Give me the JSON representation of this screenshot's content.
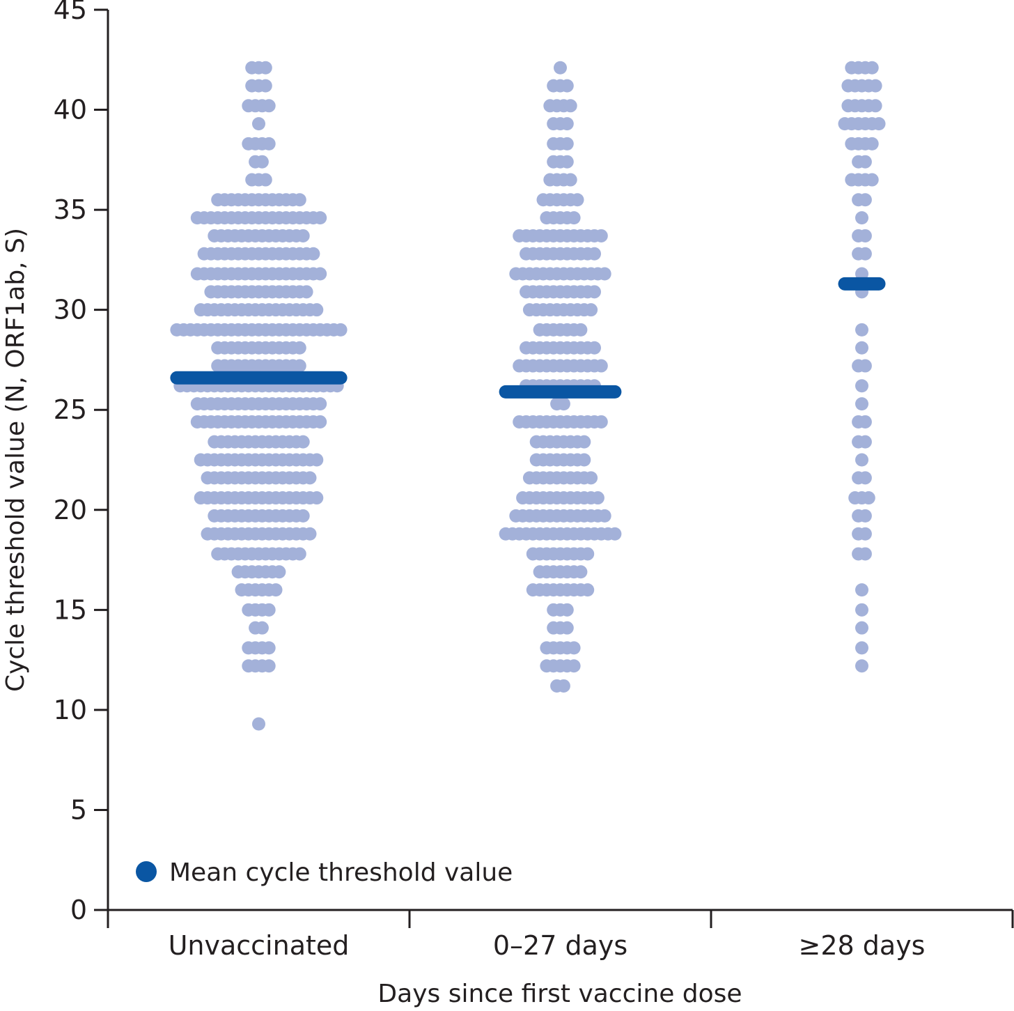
{
  "chart_data": {
    "type": "scatter",
    "subtype": "beeswarm",
    "title": "",
    "xlabel": "Days since first vaccine dose",
    "ylabel": "Cycle threshold value (N, ORF1ab, S)",
    "ylim": [
      0,
      45
    ],
    "yticks": [
      "0",
      "5",
      "10",
      "15",
      "20",
      "25",
      "30",
      "35",
      "40",
      "45"
    ],
    "categories": [
      "Unvaccinated",
      "0–27 days",
      "≥28 days"
    ],
    "grid": false,
    "legend": {
      "label": "Mean cycle threshold value",
      "position": "bottom-left"
    },
    "colors": {
      "points": "#a3b1d9",
      "mean": "#0a56a3",
      "axis": "#231f20"
    },
    "groups": [
      {
        "name": "Unvaccinated",
        "mean": 26.6,
        "bins": [
          {
            "y": 42.1,
            "n": 3
          },
          {
            "y": 41.2,
            "n": 3
          },
          {
            "y": 40.2,
            "n": 4
          },
          {
            "y": 39.3,
            "n": 1
          },
          {
            "y": 38.3,
            "n": 4
          },
          {
            "y": 37.4,
            "n": 2
          },
          {
            "y": 36.5,
            "n": 3
          },
          {
            "y": 35.5,
            "n": 13
          },
          {
            "y": 34.6,
            "n": 19
          },
          {
            "y": 33.7,
            "n": 14
          },
          {
            "y": 32.8,
            "n": 17
          },
          {
            "y": 31.8,
            "n": 19
          },
          {
            "y": 30.9,
            "n": 15
          },
          {
            "y": 30.0,
            "n": 18
          },
          {
            "y": 29.0,
            "n": 25
          },
          {
            "y": 28.1,
            "n": 13
          },
          {
            "y": 27.2,
            "n": 13
          },
          {
            "y": 26.2,
            "n": 24
          },
          {
            "y": 25.3,
            "n": 19
          },
          {
            "y": 24.4,
            "n": 19
          },
          {
            "y": 23.4,
            "n": 14
          },
          {
            "y": 22.5,
            "n": 18
          },
          {
            "y": 21.6,
            "n": 16
          },
          {
            "y": 20.6,
            "n": 18
          },
          {
            "y": 19.7,
            "n": 14
          },
          {
            "y": 18.8,
            "n": 16
          },
          {
            "y": 17.8,
            "n": 13
          },
          {
            "y": 16.9,
            "n": 7
          },
          {
            "y": 16.0,
            "n": 6
          },
          {
            "y": 15.0,
            "n": 4
          },
          {
            "y": 14.1,
            "n": 2
          },
          {
            "y": 13.1,
            "n": 4
          },
          {
            "y": 12.2,
            "n": 4
          },
          {
            "y": 9.3,
            "n": 1
          }
        ]
      },
      {
        "name": "0–27 days",
        "mean": 25.9,
        "bins": [
          {
            "y": 42.1,
            "n": 1
          },
          {
            "y": 41.2,
            "n": 3
          },
          {
            "y": 40.2,
            "n": 4
          },
          {
            "y": 39.3,
            "n": 3
          },
          {
            "y": 38.3,
            "n": 3
          },
          {
            "y": 37.4,
            "n": 3
          },
          {
            "y": 36.5,
            "n": 4
          },
          {
            "y": 35.5,
            "n": 6
          },
          {
            "y": 34.6,
            "n": 5
          },
          {
            "y": 33.7,
            "n": 13
          },
          {
            "y": 32.8,
            "n": 11
          },
          {
            "y": 31.8,
            "n": 14
          },
          {
            "y": 30.9,
            "n": 11
          },
          {
            "y": 30.0,
            "n": 10
          },
          {
            "y": 29.0,
            "n": 7
          },
          {
            "y": 28.1,
            "n": 11
          },
          {
            "y": 27.2,
            "n": 13
          },
          {
            "y": 26.2,
            "n": 11
          },
          {
            "y": 25.3,
            "n": 2
          },
          {
            "y": 24.4,
            "n": 13
          },
          {
            "y": 23.4,
            "n": 8
          },
          {
            "y": 22.5,
            "n": 8
          },
          {
            "y": 21.6,
            "n": 10
          },
          {
            "y": 20.6,
            "n": 12
          },
          {
            "y": 19.7,
            "n": 14
          },
          {
            "y": 18.8,
            "n": 17
          },
          {
            "y": 17.8,
            "n": 9
          },
          {
            "y": 16.9,
            "n": 7
          },
          {
            "y": 16.0,
            "n": 9
          },
          {
            "y": 15.0,
            "n": 3
          },
          {
            "y": 14.1,
            "n": 3
          },
          {
            "y": 13.1,
            "n": 5
          },
          {
            "y": 12.2,
            "n": 5
          },
          {
            "y": 11.2,
            "n": 2
          }
        ]
      },
      {
        "name": "≥28 days",
        "mean": 31.3,
        "bins": [
          {
            "y": 42.1,
            "n": 4
          },
          {
            "y": 41.2,
            "n": 5
          },
          {
            "y": 40.2,
            "n": 5
          },
          {
            "y": 39.3,
            "n": 6
          },
          {
            "y": 38.3,
            "n": 4
          },
          {
            "y": 37.4,
            "n": 2
          },
          {
            "y": 36.5,
            "n": 4
          },
          {
            "y": 35.5,
            "n": 2
          },
          {
            "y": 34.6,
            "n": 1
          },
          {
            "y": 33.7,
            "n": 2
          },
          {
            "y": 32.8,
            "n": 2
          },
          {
            "y": 31.8,
            "n": 1
          },
          {
            "y": 30.9,
            "n": 1
          },
          {
            "y": 29.0,
            "n": 1
          },
          {
            "y": 28.1,
            "n": 1
          },
          {
            "y": 27.2,
            "n": 2
          },
          {
            "y": 26.2,
            "n": 1
          },
          {
            "y": 25.3,
            "n": 1
          },
          {
            "y": 24.4,
            "n": 2
          },
          {
            "y": 23.4,
            "n": 2
          },
          {
            "y": 22.5,
            "n": 1
          },
          {
            "y": 21.6,
            "n": 2
          },
          {
            "y": 20.6,
            "n": 3
          },
          {
            "y": 19.7,
            "n": 2
          },
          {
            "y": 18.8,
            "n": 2
          },
          {
            "y": 17.8,
            "n": 2
          },
          {
            "y": 16.0,
            "n": 1
          },
          {
            "y": 15.0,
            "n": 1
          },
          {
            "y": 14.1,
            "n": 1
          },
          {
            "y": 13.1,
            "n": 1
          },
          {
            "y": 12.2,
            "n": 1
          }
        ]
      }
    ]
  }
}
